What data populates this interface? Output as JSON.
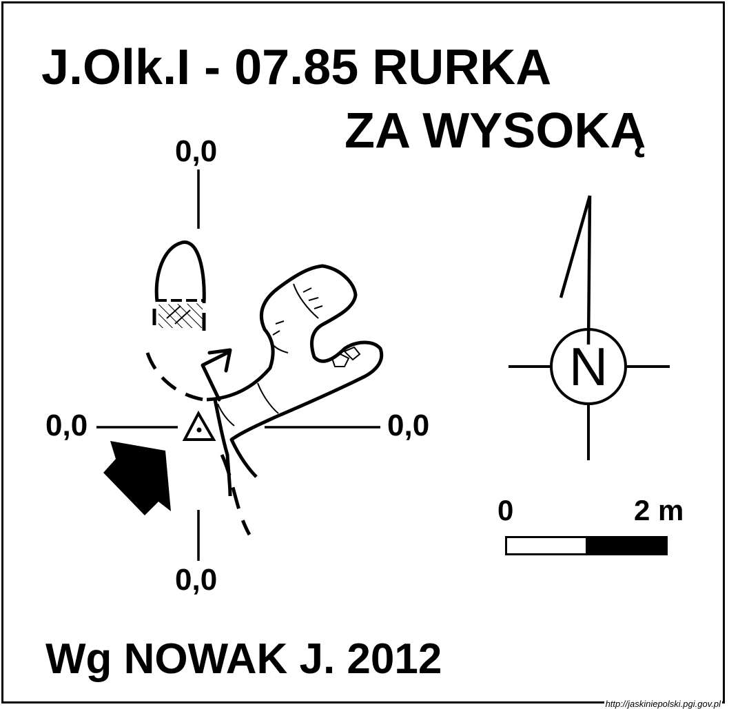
{
  "title": {
    "line1": "J.Olk.I - 07.85  RURKA",
    "line2": "ZA WYSOKĄ"
  },
  "coordinates": {
    "top": "0,0",
    "left": "0,0",
    "right": "0,0",
    "bottom": "0,0"
  },
  "compass": {
    "label": "N"
  },
  "scale_bar": {
    "start_label": "0",
    "end_label": "2 m"
  },
  "author": "Wg NOWAK J. 2012",
  "source_text": "http://jaskiniepolski.pgi.gov.pl",
  "icons": [
    "entrance-arrow-icon",
    "survey-point-triangle-icon",
    "north-arrow-icon",
    "exit-arrow-icon"
  ]
}
